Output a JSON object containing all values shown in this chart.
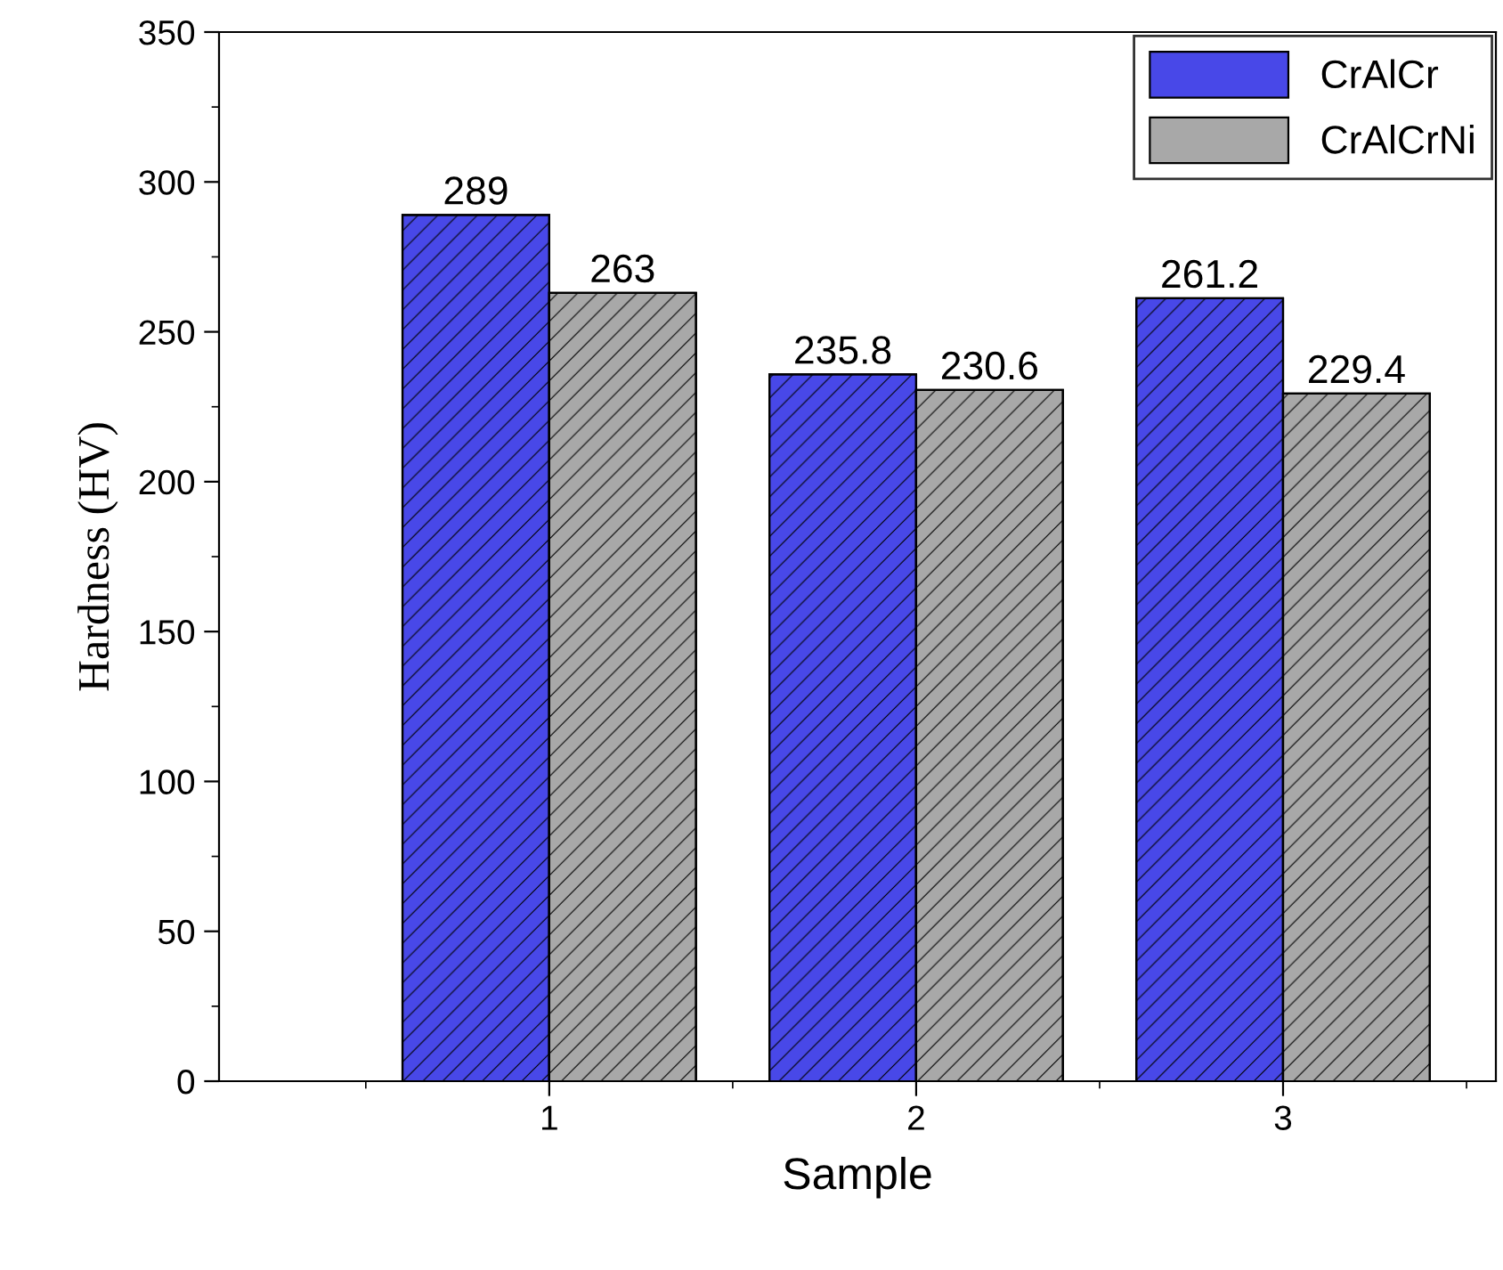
{
  "chart_data": {
    "type": "bar",
    "xlabel": "Sample",
    "ylabel": "Hardness (HV)",
    "categories": [
      "1",
      "2",
      "3"
    ],
    "series": [
      {
        "name": "CrAlCr",
        "color": "#4848e8",
        "values": [
          289,
          235.8,
          261.2
        ]
      },
      {
        "name": "CrAlCrNi",
        "color": "#a8a8a8",
        "values": [
          263,
          230.6,
          229.4
        ]
      }
    ],
    "ylim": [
      0,
      350
    ],
    "yticks": [
      0,
      50,
      100,
      150,
      200,
      250,
      300,
      350
    ],
    "data_labels": true,
    "legend": "top right",
    "grid": false
  }
}
